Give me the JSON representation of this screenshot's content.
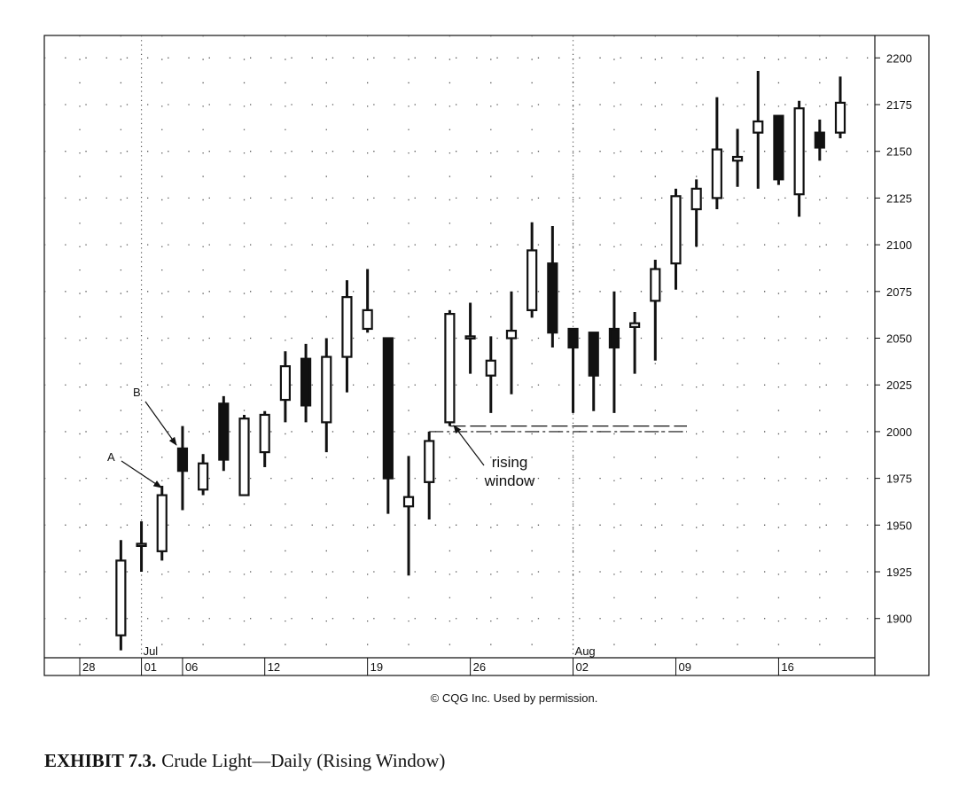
{
  "chart_data": {
    "type": "candlestick",
    "categories": [
      "28",
      null,
      null,
      "01",
      null,
      "06",
      null,
      null,
      null,
      "12",
      null,
      null,
      null,
      null,
      "19",
      null,
      null,
      null,
      null,
      "26",
      null,
      null,
      null,
      null,
      "02",
      null,
      null,
      null,
      null,
      "09",
      null,
      null,
      null,
      null,
      "16",
      null,
      null,
      null
    ],
    "month_labels": [
      null,
      null,
      null,
      "Jul",
      null,
      null,
      null,
      null,
      null,
      null,
      null,
      null,
      null,
      null,
      null,
      null,
      null,
      null,
      null,
      null,
      null,
      null,
      null,
      null,
      "Aug",
      null,
      null,
      null,
      null,
      null,
      null,
      null,
      null,
      null,
      null,
      null,
      null,
      null
    ],
    "open": [
      null,
      null,
      1891,
      1940,
      1936,
      1991,
      1969,
      2015,
      1966,
      1989,
      2017,
      2039,
      2005,
      2040,
      2055,
      2050,
      1960,
      1973,
      2005,
      2051,
      2030,
      2050,
      2065,
      2090,
      2055,
      2053,
      2055,
      2056,
      2070,
      2090,
      2119,
      2125,
      2145,
      2160,
      2169,
      2127,
      2160,
      2160
    ],
    "high": [
      null,
      null,
      1942,
      1952,
      1971,
      2003,
      1988,
      2019,
      2009,
      2011,
      2043,
      2047,
      2050,
      2081,
      2087,
      2050,
      1987,
      2000,
      2065,
      2069,
      2051,
      2075,
      2112,
      2110,
      2055,
      2053,
      2075,
      2064,
      2092,
      2130,
      2135,
      2179,
      2162,
      2193,
      2169,
      2177,
      2167,
      2190
    ],
    "low": [
      null,
      null,
      1883,
      1925,
      1931,
      1958,
      1966,
      1979,
      1966,
      1981,
      2005,
      2005,
      1989,
      2021,
      2053,
      1956,
      1923,
      1953,
      2003,
      2031,
      2010,
      2020,
      2061,
      2045,
      2010,
      2011,
      2010,
      2031,
      2038,
      2076,
      2099,
      2119,
      2131,
      2130,
      2132,
      2115,
      2145,
      2157
    ],
    "close": [
      null,
      null,
      1931,
      1940,
      1966,
      1979,
      1983,
      1985,
      2007,
      2009,
      2035,
      2014,
      2040,
      2072,
      2065,
      1975,
      1965,
      1995,
      2063,
      2051,
      2038,
      2054,
      2097,
      2053,
      2045,
      2030,
      2045,
      2058,
      2087,
      2126,
      2130,
      2151,
      2147,
      2166,
      2135,
      2173,
      2152,
      2176
    ],
    "up_color": "#ffffff",
    "down_color": "#111111",
    "ylim": [
      1879,
      2212
    ],
    "yticks": [
      1900,
      1925,
      1950,
      1975,
      2000,
      2025,
      2050,
      2075,
      2100,
      2125,
      2150,
      2175,
      2200
    ],
    "grid": true,
    "annotations": [
      "A",
      "B",
      "rising window"
    ],
    "credit": "© CQG Inc. Used by permission.",
    "caption_label": "EXHIBIT 7.3.",
    "caption": "Crude Light—Daily (Rising Window)"
  }
}
